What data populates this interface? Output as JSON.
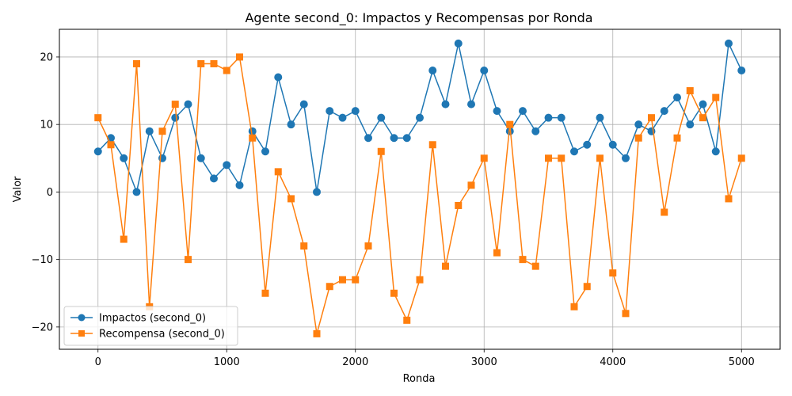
{
  "chart_data": {
    "type": "line",
    "title": "Agente second_0: Impactos y Recompensas por Ronda",
    "xlabel": "Ronda",
    "ylabel": "Valor",
    "xlim": [
      -300,
      5300
    ],
    "ylim": [
      -23.3,
      24.1
    ],
    "xticks": [
      0,
      1000,
      2000,
      3000,
      4000,
      5000
    ],
    "yticks": [
      -20,
      -10,
      0,
      10,
      20
    ],
    "grid": true,
    "legend_position": "lower-left",
    "x": [
      0,
      100,
      200,
      300,
      400,
      500,
      600,
      700,
      800,
      900,
      1000,
      1100,
      1200,
      1300,
      1400,
      1500,
      1600,
      1700,
      1800,
      1900,
      2000,
      2100,
      2200,
      2300,
      2400,
      2500,
      2600,
      2700,
      2800,
      2900,
      3000,
      3100,
      3200,
      3300,
      3400,
      3500,
      3600,
      3700,
      3800,
      3900,
      4000,
      4100,
      4200,
      4300,
      4400,
      4500,
      4600,
      4700,
      4800,
      4900,
      5000
    ],
    "series": [
      {
        "name": "Impactos (second_0)",
        "color": "#1f77b4",
        "marker": "circle",
        "values": [
          6,
          8,
          5,
          0,
          9,
          5,
          11,
          13,
          5,
          2,
          4,
          1,
          9,
          6,
          17,
          10,
          13,
          0,
          12,
          11,
          12,
          8,
          11,
          8,
          8,
          11,
          18,
          13,
          22,
          13,
          18,
          12,
          9,
          12,
          9,
          11,
          11,
          6,
          7,
          11,
          7,
          5,
          10,
          9,
          12,
          14,
          10,
          13,
          6,
          22,
          18
        ]
      },
      {
        "name": "Recompensa (second_0)",
        "color": "#ff7f0e",
        "marker": "square",
        "values": [
          11,
          7,
          -7,
          19,
          -17,
          9,
          13,
          -10,
          19,
          19,
          18,
          20,
          8,
          -15,
          3,
          -1,
          -8,
          -21,
          -14,
          -13,
          -13,
          -8,
          6,
          -15,
          -19,
          -13,
          7,
          -11,
          -2,
          1,
          5,
          -9,
          10,
          -10,
          -11,
          5,
          5,
          -17,
          -14,
          5,
          -12,
          -18,
          8,
          11,
          -3,
          8,
          15,
          11,
          14,
          -1,
          5
        ]
      }
    ]
  }
}
